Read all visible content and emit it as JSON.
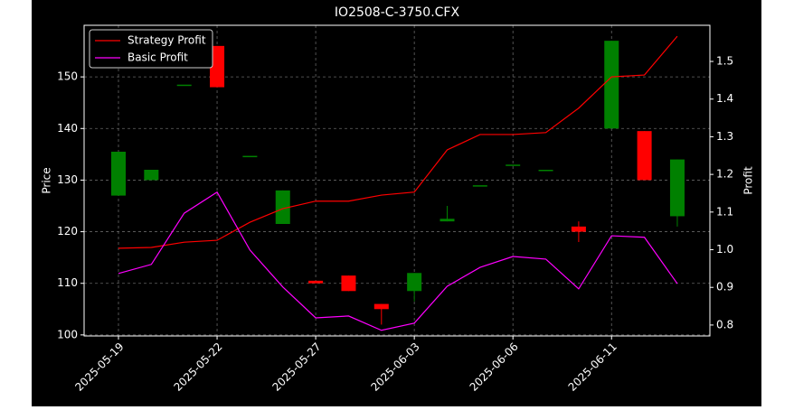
{
  "chart_data": {
    "type": "candlestick",
    "title": "IO2508-C-3750.CFX",
    "ylabel": "Price",
    "y2label": "Profit",
    "categories": [
      "2025-05-19",
      null,
      null,
      "2025-05-22",
      null,
      null,
      "2025-05-27",
      null,
      null,
      "2025-06-03",
      null,
      null,
      "2025-06-06",
      null,
      null,
      "2025-06-11",
      null,
      null
    ],
    "open": [
      127,
      130,
      148.5,
      156,
      134.7,
      121.5,
      110.5,
      111.5,
      106,
      108.5,
      122,
      129,
      133,
      132,
      121,
      140,
      139.5,
      123
    ],
    "high": [
      135.5,
      132,
      148.5,
      156,
      134.7,
      128,
      110.5,
      111.5,
      106,
      112,
      125,
      129,
      133,
      132,
      122,
      157,
      139.5,
      134
    ],
    "low": [
      127,
      130,
      148.5,
      148,
      134.7,
      121.5,
      110,
      108.5,
      102,
      106.5,
      122,
      129,
      133,
      132,
      118,
      140,
      130,
      121
    ],
    "close": [
      135.5,
      132,
      148.5,
      148,
      134.7,
      128,
      110,
      108.5,
      105,
      112,
      122.5,
      129,
      133,
      132,
      120,
      157,
      130,
      134
    ],
    "up_color": "#008000",
    "down_color": "#ff0000",
    "series": [
      {
        "name": "Strategy Profit",
        "color": "#ff0000",
        "axis": "y2",
        "values": [
          1.004,
          1.006,
          1.02,
          1.025,
          1.073,
          1.109,
          1.129,
          1.129,
          1.145,
          1.153,
          1.265,
          1.306,
          1.306,
          1.311,
          1.376,
          1.459,
          1.464,
          1.567
        ]
      },
      {
        "name": "Basic Profit",
        "color": "#ff00ff",
        "axis": "y2",
        "values": [
          0.937,
          0.961,
          1.097,
          1.153,
          0.999,
          0.901,
          0.819,
          0.824,
          0.786,
          0.805,
          0.903,
          0.953,
          0.982,
          0.975,
          0.896,
          1.037,
          1.033,
          0.91
        ]
      }
    ],
    "ylim": [
      99.8,
      160
    ],
    "yticks": [
      100,
      110,
      120,
      130,
      140,
      150
    ],
    "y2lim": [
      0.771,
      1.596
    ],
    "y2ticks": [
      0.8,
      0.9,
      {
        "value": 1,
        "label": "1.0"
      },
      1.1,
      1.2,
      1.3,
      1.4,
      1.5
    ],
    "grid": true,
    "legend": "upper left"
  }
}
